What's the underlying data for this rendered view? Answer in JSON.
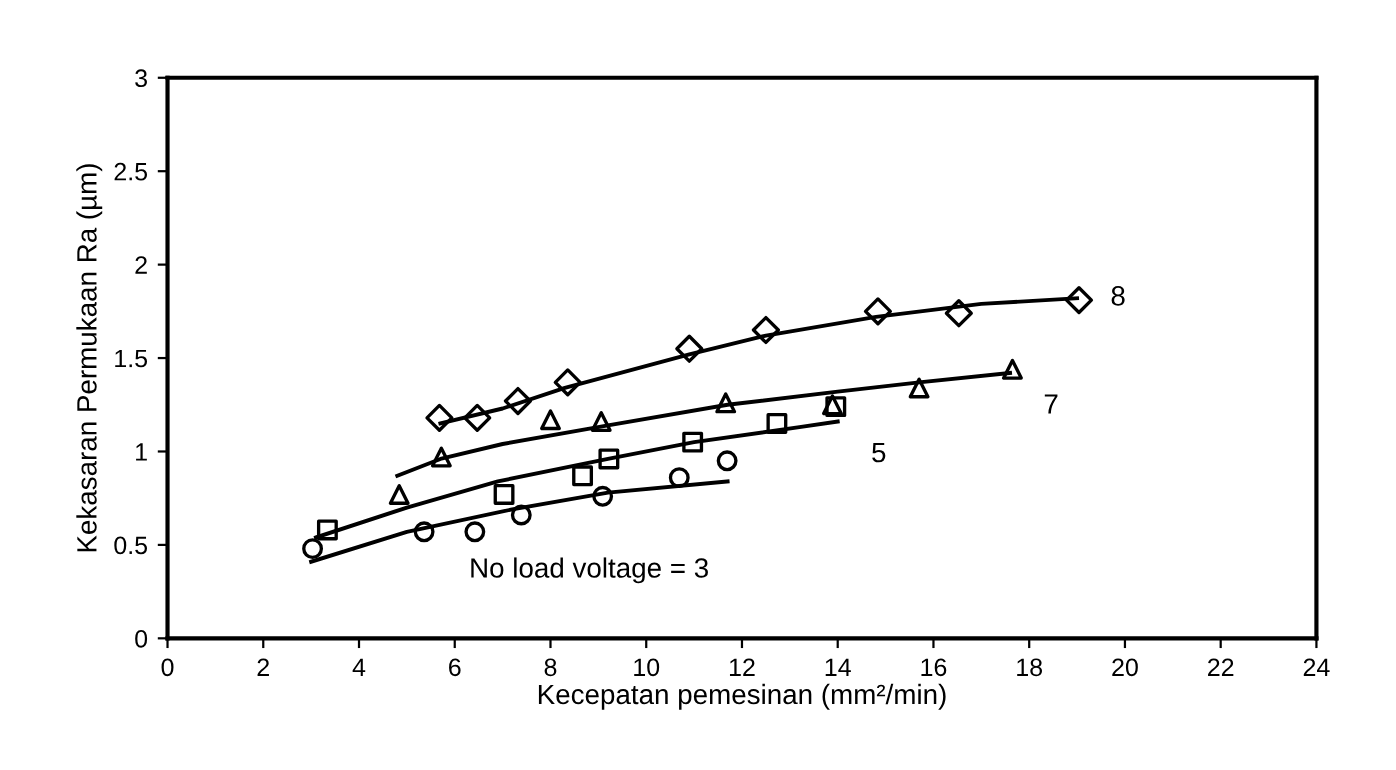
{
  "chart_data": {
    "type": "scatter",
    "xlabel": "Kecepatan pemesinan (mm²/min)",
    "ylabel": "Kekasaran Permukaan Ra (µm)",
    "xlim": [
      0,
      24
    ],
    "ylim": [
      0,
      3
    ],
    "xticks": [
      0,
      2,
      4,
      6,
      8,
      10,
      12,
      14,
      16,
      18,
      20,
      22,
      24
    ],
    "yticks": [
      0,
      0.5,
      1,
      1.5,
      2,
      2.5,
      3
    ],
    "grid": false,
    "legend": false,
    "series": [
      {
        "marker": "diamond",
        "color": "#000000",
        "x": [
          5.68,
          6.47,
          7.32,
          8.36,
          10.9,
          12.5,
          14.84,
          16.53,
          19.04
        ],
        "values": [
          1.18,
          1.18,
          1.27,
          1.37,
          1.55,
          1.65,
          1.75,
          1.74,
          1.81
        ]
      },
      {
        "marker": "triangle",
        "color": "#000000",
        "x": [
          4.84,
          5.72,
          8.0,
          9.06,
          11.66,
          13.89,
          15.7,
          17.65
        ],
        "values": [
          0.77,
          0.97,
          1.17,
          1.16,
          1.26,
          1.25,
          1.34,
          1.44
        ]
      },
      {
        "marker": "square",
        "color": "#000000",
        "x": [
          3.34,
          7.03,
          8.67,
          9.22,
          10.97,
          12.73,
          13.96
        ],
        "values": [
          0.58,
          0.77,
          0.87,
          0.96,
          1.05,
          1.15,
          1.24
        ]
      },
      {
        "marker": "circle",
        "color": "#000000",
        "x": [
          3.03,
          5.36,
          6.42,
          7.39,
          9.09,
          10.69,
          11.69
        ],
        "values": [
          0.48,
          0.57,
          0.57,
          0.66,
          0.76,
          0.86,
          0.95
        ]
      },
      {
        "type": "line",
        "name": "8",
        "marker": "none",
        "line_style": "solid",
        "color": "#000000",
        "x": [
          5.7,
          7,
          8.3,
          10.9,
          12.5,
          14.8,
          17,
          19
        ],
        "values": [
          1.15,
          1.23,
          1.34,
          1.52,
          1.62,
          1.72,
          1.79,
          1.82
        ]
      },
      {
        "type": "line",
        "name": "7",
        "marker": "none",
        "line_style": "solid",
        "color": "#000000",
        "x": [
          4.8,
          5.7,
          7,
          9.2,
          11.7,
          14,
          15.7,
          17.6
        ],
        "values": [
          0.87,
          0.96,
          1.04,
          1.14,
          1.25,
          1.32,
          1.37,
          1.42
        ]
      },
      {
        "type": "line",
        "name": "5",
        "marker": "none",
        "line_style": "solid",
        "color": "#000000",
        "x": [
          3.1,
          5,
          6.9,
          9.2,
          11,
          13.2,
          14
        ],
        "values": [
          0.54,
          0.7,
          0.84,
          0.96,
          1.05,
          1.13,
          1.16
        ]
      },
      {
        "type": "line",
        "name": "No load voltage = 3",
        "marker": "none",
        "line_style": "solid",
        "color": "#000000",
        "x": [
          3,
          5,
          7.2,
          9.2,
          11.7
        ],
        "values": [
          0.41,
          0.57,
          0.69,
          0.78,
          0.84
        ]
      }
    ]
  }
}
